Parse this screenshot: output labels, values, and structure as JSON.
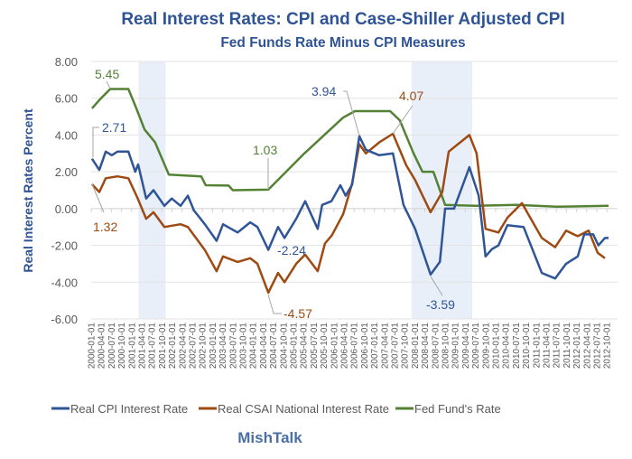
{
  "chart_data": {
    "type": "line",
    "title": "Real Interest Rates: CPI and Case-Shiller Adjusted CPI",
    "subtitle": "Fed Funds Rate Minus CPI Measures",
    "ylabel": "Real Interest Rates Percent",
    "xlabel": "",
    "ylim": [
      -6,
      8
    ],
    "xlim_years": [
      2000,
      2013
    ],
    "yticks": [
      "8.00",
      "6.00",
      "4.00",
      "2.00",
      "0.00",
      "-2.00",
      "-4.00",
      "-6.00"
    ],
    "ytick_values": [
      8,
      6,
      4,
      2,
      0,
      -2,
      -4,
      -6
    ],
    "xtick_labels": [
      "2000-01-01",
      "2000-04-01",
      "2000-07-01",
      "2000-10-01",
      "2001-01-01",
      "2001-04-01",
      "2001-07-01",
      "2001-10-01",
      "2002-01-01",
      "2002-04-01",
      "2002-07-01",
      "2002-10-01",
      "2003-01-01",
      "2003-04-01",
      "2003-07-01",
      "2003-10-01",
      "2004-01-01",
      "2004-04-01",
      "2004-07-01",
      "2004-10-01",
      "2005-01-01",
      "2005-04-01",
      "2005-07-01",
      "2005-10-01",
      "2006-01-01",
      "2006-04-01",
      "2006-07-01",
      "2006-10-01",
      "2007-01-01",
      "2007-04-01",
      "2007-07-01",
      "2007-10-01",
      "2008-01-01",
      "2008-04-01",
      "2008-07-01",
      "2008-10-01",
      "2009-01-01",
      "2009-04-01",
      "2009-07-01",
      "2009-10-01",
      "2010-01-01",
      "2010-04-01",
      "2010-07-01",
      "2010-10-01",
      "2011-01-01",
      "2011-04-01",
      "2011-07-01",
      "2011-10-01",
      "2012-01-01",
      "2012-04-01",
      "2012-07-01",
      "2012-10-01"
    ],
    "grid": true,
    "legend_position": "bottom",
    "recessions": [
      [
        2001.17,
        2001.84
      ],
      [
        2007.92,
        2009.42
      ]
    ],
    "series": [
      {
        "name": "Real CPI Interest Rate",
        "color": "#2f5597",
        "points": [
          [
            2000.02,
            2.71
          ],
          [
            2000.2,
            2.1
          ],
          [
            2000.36,
            3.1
          ],
          [
            2000.51,
            2.9
          ],
          [
            2000.65,
            3.1
          ],
          [
            2000.92,
            3.1
          ],
          [
            2001.09,
            2.0
          ],
          [
            2001.16,
            2.4
          ],
          [
            2001.36,
            0.55
          ],
          [
            2001.54,
            1.0
          ],
          [
            2001.81,
            0.15
          ],
          [
            2001.99,
            0.55
          ],
          [
            2002.21,
            0.15
          ],
          [
            2002.39,
            0.7
          ],
          [
            2002.54,
            -0.1
          ],
          [
            2002.81,
            -0.85
          ],
          [
            2003.1,
            -1.75
          ],
          [
            2003.26,
            -0.85
          ],
          [
            2003.62,
            -1.3
          ],
          [
            2003.93,
            -0.75
          ],
          [
            2004.11,
            -1.0
          ],
          [
            2004.38,
            -2.24
          ],
          [
            2004.62,
            -1.0
          ],
          [
            2004.78,
            -1.6
          ],
          [
            2005.07,
            -0.55
          ],
          [
            2005.29,
            0.4
          ],
          [
            2005.6,
            -1.1
          ],
          [
            2005.71,
            0.2
          ],
          [
            2005.94,
            0.4
          ],
          [
            2006.16,
            1.27
          ],
          [
            2006.29,
            0.7
          ],
          [
            2006.45,
            1.3
          ],
          [
            2006.63,
            3.94
          ],
          [
            2006.79,
            3.2
          ],
          [
            2007.12,
            2.9
          ],
          [
            2007.46,
            3.0
          ],
          [
            2007.72,
            0.2
          ],
          [
            2008.01,
            -1.1
          ],
          [
            2008.39,
            -3.59
          ],
          [
            2008.62,
            -2.9
          ],
          [
            2008.75,
            0.0
          ],
          [
            2008.97,
            0.0
          ],
          [
            2009.35,
            2.25
          ],
          [
            2009.58,
            0.7
          ],
          [
            2009.75,
            -2.6
          ],
          [
            2009.91,
            -2.2
          ],
          [
            2010.07,
            -2.0
          ],
          [
            2010.29,
            -0.9
          ],
          [
            2010.69,
            -1.0
          ],
          [
            2011.14,
            -3.5
          ],
          [
            2011.47,
            -3.8
          ],
          [
            2011.74,
            -3.0
          ],
          [
            2012.03,
            -2.6
          ],
          [
            2012.19,
            -1.4
          ],
          [
            2012.41,
            -1.4
          ],
          [
            2012.54,
            -2.0
          ],
          [
            2012.7,
            -1.6
          ],
          [
            2012.79,
            -1.6
          ]
        ]
      },
      {
        "name": "Real CSAI National Interest Rate",
        "color": "#9e4a13",
        "points": [
          [
            2000.02,
            1.32
          ],
          [
            2000.2,
            0.9
          ],
          [
            2000.36,
            1.65
          ],
          [
            2000.65,
            1.75
          ],
          [
            2000.92,
            1.65
          ],
          [
            2001.14,
            0.6
          ],
          [
            2001.36,
            -0.55
          ],
          [
            2001.54,
            -0.2
          ],
          [
            2001.81,
            -1.0
          ],
          [
            2002.21,
            -0.85
          ],
          [
            2002.39,
            -1.0
          ],
          [
            2002.81,
            -2.25
          ],
          [
            2003.1,
            -3.4
          ],
          [
            2003.26,
            -2.6
          ],
          [
            2003.62,
            -2.9
          ],
          [
            2003.93,
            -2.7
          ],
          [
            2004.11,
            -3.0
          ],
          [
            2004.38,
            -4.57
          ],
          [
            2004.62,
            -3.5
          ],
          [
            2004.78,
            -4.0
          ],
          [
            2005.07,
            -3.0
          ],
          [
            2005.29,
            -2.5
          ],
          [
            2005.6,
            -3.4
          ],
          [
            2005.78,
            -1.9
          ],
          [
            2005.95,
            -1.45
          ],
          [
            2006.23,
            -0.3
          ],
          [
            2006.45,
            1.37
          ],
          [
            2006.63,
            3.5
          ],
          [
            2006.79,
            3.0
          ],
          [
            2007.12,
            3.6
          ],
          [
            2007.46,
            4.07
          ],
          [
            2007.79,
            2.35
          ],
          [
            2008.01,
            1.55
          ],
          [
            2008.39,
            -0.2
          ],
          [
            2008.68,
            0.9
          ],
          [
            2008.84,
            3.1
          ],
          [
            2009.35,
            4.0
          ],
          [
            2009.53,
            3.0
          ],
          [
            2009.75,
            -1.1
          ],
          [
            2010.07,
            -1.3
          ],
          [
            2010.29,
            -0.5
          ],
          [
            2010.65,
            0.3
          ],
          [
            2011.14,
            -1.6
          ],
          [
            2011.47,
            -2.1
          ],
          [
            2011.74,
            -1.2
          ],
          [
            2012.03,
            -1.5
          ],
          [
            2012.3,
            -1.2
          ],
          [
            2012.52,
            -2.4
          ],
          [
            2012.7,
            -2.7
          ]
        ]
      },
      {
        "name": "Fed Fund's Rate",
        "color": "#548235",
        "points": [
          [
            2000.02,
            5.45
          ],
          [
            2000.2,
            5.9
          ],
          [
            2000.47,
            6.5
          ],
          [
            2000.92,
            6.5
          ],
          [
            2001.09,
            5.6
          ],
          [
            2001.32,
            4.3
          ],
          [
            2001.58,
            3.6
          ],
          [
            2001.92,
            1.85
          ],
          [
            2002.72,
            1.75
          ],
          [
            2002.83,
            1.27
          ],
          [
            2003.4,
            1.25
          ],
          [
            2003.5,
            1.0
          ],
          [
            2004.38,
            1.03
          ],
          [
            2005.27,
            3.0
          ],
          [
            2006.23,
            4.95
          ],
          [
            2006.52,
            5.3
          ],
          [
            2007.39,
            5.3
          ],
          [
            2007.63,
            4.8
          ],
          [
            2007.97,
            3.0
          ],
          [
            2008.19,
            2.0
          ],
          [
            2008.46,
            2.0
          ],
          [
            2008.75,
            0.2
          ],
          [
            2009.5,
            0.15
          ],
          [
            2010.5,
            0.2
          ],
          [
            2011.5,
            0.1
          ],
          [
            2012.79,
            0.15
          ]
        ]
      }
    ],
    "annotations": [
      {
        "text": "5.45",
        "series": "Fed Fund's Rate"
      },
      {
        "text": "2.71",
        "series": "Real CPI Interest Rate"
      },
      {
        "text": "1.32",
        "series": "Real CSAI National Interest Rate"
      },
      {
        "text": "1.03",
        "series": "Fed Fund's Rate"
      },
      {
        "text": "-2.24",
        "series": "Real CPI Interest Rate"
      },
      {
        "text": "-4.57",
        "series": "Real CSAI National Interest Rate"
      },
      {
        "text": "3.94",
        "series": "Real CPI Interest Rate"
      },
      {
        "text": "4.07",
        "series": "Real CSAI National Interest Rate"
      },
      {
        "text": "-3.59",
        "series": "Real CPI Interest Rate"
      }
    ]
  },
  "footer": {
    "brand": "MishTalk"
  }
}
